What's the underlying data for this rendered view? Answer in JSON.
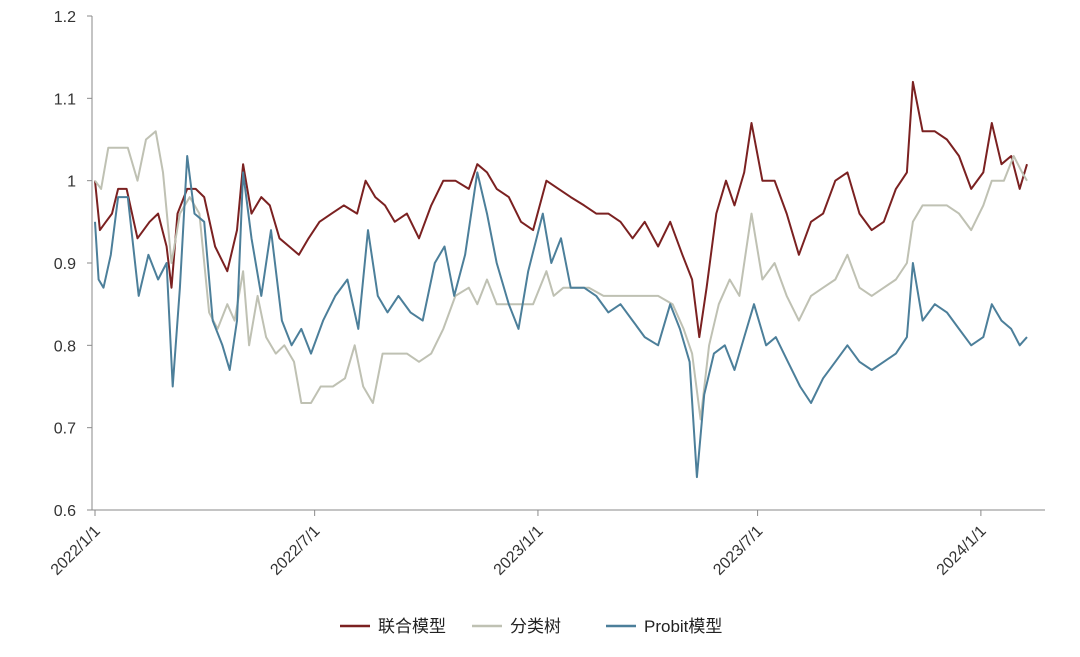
{
  "chart_data": {
    "type": "line",
    "title": "",
    "xlabel": "",
    "ylabel": "",
    "ylim": [
      0.6,
      1.2
    ],
    "y_ticks": [
      "0.6",
      "0.7",
      "0.8",
      "0.9",
      "1",
      "1.1",
      "1.2"
    ],
    "x_ticks": [
      "2022/1/1",
      "2022/7/1",
      "2023/1/1",
      "2023/7/1",
      "2024/1/1"
    ],
    "x_range": [
      "2022-01-01",
      "2024-02-08"
    ],
    "grid": false,
    "legend_position": "bottom",
    "series": [
      {
        "name": "联合模型",
        "color": "#7b2121",
        "points": [
          [
            "2022-01-01",
            1.0
          ],
          [
            "2022-01-05",
            0.94
          ],
          [
            "2022-01-10",
            0.95
          ],
          [
            "2022-01-15",
            0.96
          ],
          [
            "2022-01-20",
            0.99
          ],
          [
            "2022-01-27",
            0.99
          ],
          [
            "2022-02-05",
            0.93
          ],
          [
            "2022-02-15",
            0.95
          ],
          [
            "2022-02-22",
            0.96
          ],
          [
            "2022-03-01",
            0.92
          ],
          [
            "2022-03-05",
            0.87
          ],
          [
            "2022-03-10",
            0.96
          ],
          [
            "2022-03-18",
            0.99
          ],
          [
            "2022-03-25",
            0.99
          ],
          [
            "2022-04-01",
            0.98
          ],
          [
            "2022-04-10",
            0.92
          ],
          [
            "2022-04-20",
            0.89
          ],
          [
            "2022-04-28",
            0.94
          ],
          [
            "2022-05-03",
            1.02
          ],
          [
            "2022-05-10",
            0.96
          ],
          [
            "2022-05-18",
            0.98
          ],
          [
            "2022-05-25",
            0.97
          ],
          [
            "2022-06-02",
            0.93
          ],
          [
            "2022-06-10",
            0.92
          ],
          [
            "2022-06-18",
            0.91
          ],
          [
            "2022-06-26",
            0.93
          ],
          [
            "2022-07-05",
            0.95
          ],
          [
            "2022-07-15",
            0.96
          ],
          [
            "2022-07-25",
            0.97
          ],
          [
            "2022-08-05",
            0.96
          ],
          [
            "2022-08-12",
            1.0
          ],
          [
            "2022-08-20",
            0.98
          ],
          [
            "2022-08-28",
            0.97
          ],
          [
            "2022-09-05",
            0.95
          ],
          [
            "2022-09-15",
            0.96
          ],
          [
            "2022-09-25",
            0.93
          ],
          [
            "2022-10-05",
            0.97
          ],
          [
            "2022-10-15",
            1.0
          ],
          [
            "2022-10-25",
            1.0
          ],
          [
            "2022-11-05",
            0.99
          ],
          [
            "2022-11-12",
            1.02
          ],
          [
            "2022-11-20",
            1.01
          ],
          [
            "2022-11-28",
            0.99
          ],
          [
            "2022-12-08",
            0.98
          ],
          [
            "2022-12-18",
            0.95
          ],
          [
            "2022-12-28",
            0.94
          ],
          [
            "2023-01-08",
            1.0
          ],
          [
            "2023-01-18",
            0.99
          ],
          [
            "2023-01-28",
            0.98
          ],
          [
            "2023-02-08",
            0.97
          ],
          [
            "2023-02-18",
            0.96
          ],
          [
            "2023-02-28",
            0.96
          ],
          [
            "2023-03-10",
            0.95
          ],
          [
            "2023-03-20",
            0.93
          ],
          [
            "2023-03-30",
            0.95
          ],
          [
            "2023-04-10",
            0.92
          ],
          [
            "2023-04-20",
            0.95
          ],
          [
            "2023-04-30",
            0.91
          ],
          [
            "2023-05-08",
            0.88
          ],
          [
            "2023-05-14",
            0.81
          ],
          [
            "2023-05-20",
            0.87
          ],
          [
            "2023-05-28",
            0.96
          ],
          [
            "2023-06-05",
            1.0
          ],
          [
            "2023-06-12",
            0.97
          ],
          [
            "2023-06-20",
            1.01
          ],
          [
            "2023-06-26",
            1.07
          ],
          [
            "2023-07-05",
            1.0
          ],
          [
            "2023-07-15",
            1.0
          ],
          [
            "2023-07-25",
            0.96
          ],
          [
            "2023-08-04",
            0.91
          ],
          [
            "2023-08-14",
            0.95
          ],
          [
            "2023-08-24",
            0.96
          ],
          [
            "2023-09-03",
            1.0
          ],
          [
            "2023-09-13",
            1.01
          ],
          [
            "2023-09-23",
            0.96
          ],
          [
            "2023-10-03",
            0.94
          ],
          [
            "2023-10-13",
            0.95
          ],
          [
            "2023-10-23",
            0.99
          ],
          [
            "2023-11-01",
            1.01
          ],
          [
            "2023-11-06",
            1.12
          ],
          [
            "2023-11-14",
            1.06
          ],
          [
            "2023-11-24",
            1.06
          ],
          [
            "2023-12-04",
            1.05
          ],
          [
            "2023-12-14",
            1.03
          ],
          [
            "2023-12-24",
            0.99
          ],
          [
            "2024-01-03",
            1.01
          ],
          [
            "2024-01-10",
            1.07
          ],
          [
            "2024-01-18",
            1.02
          ],
          [
            "2024-01-26",
            1.03
          ],
          [
            "2024-02-02",
            0.99
          ],
          [
            "2024-02-08",
            1.02
          ]
        ]
      },
      {
        "name": "分类树",
        "color": "#bfc1b3",
        "points": [
          [
            "2022-01-01",
            1.0
          ],
          [
            "2022-01-06",
            0.99
          ],
          [
            "2022-01-12",
            1.04
          ],
          [
            "2022-01-20",
            1.04
          ],
          [
            "2022-01-28",
            1.04
          ],
          [
            "2022-02-05",
            1.0
          ],
          [
            "2022-02-12",
            1.05
          ],
          [
            "2022-02-20",
            1.06
          ],
          [
            "2022-02-26",
            1.01
          ],
          [
            "2022-03-05",
            0.9
          ],
          [
            "2022-03-12",
            0.96
          ],
          [
            "2022-03-20",
            0.98
          ],
          [
            "2022-03-28",
            0.96
          ],
          [
            "2022-04-05",
            0.84
          ],
          [
            "2022-04-12",
            0.82
          ],
          [
            "2022-04-20",
            0.85
          ],
          [
            "2022-04-26",
            0.83
          ],
          [
            "2022-05-03",
            0.89
          ],
          [
            "2022-05-08",
            0.8
          ],
          [
            "2022-05-15",
            0.86
          ],
          [
            "2022-05-22",
            0.81
          ],
          [
            "2022-05-30",
            0.79
          ],
          [
            "2022-06-06",
            0.8
          ],
          [
            "2022-06-14",
            0.78
          ],
          [
            "2022-06-20",
            0.73
          ],
          [
            "2022-06-28",
            0.73
          ],
          [
            "2022-07-06",
            0.75
          ],
          [
            "2022-07-16",
            0.75
          ],
          [
            "2022-07-26",
            0.76
          ],
          [
            "2022-08-03",
            0.8
          ],
          [
            "2022-08-10",
            0.75
          ],
          [
            "2022-08-18",
            0.73
          ],
          [
            "2022-08-26",
            0.79
          ],
          [
            "2022-09-05",
            0.79
          ],
          [
            "2022-09-15",
            0.79
          ],
          [
            "2022-09-25",
            0.78
          ],
          [
            "2022-10-05",
            0.79
          ],
          [
            "2022-10-15",
            0.82
          ],
          [
            "2022-10-25",
            0.86
          ],
          [
            "2022-11-05",
            0.87
          ],
          [
            "2022-11-12",
            0.85
          ],
          [
            "2022-11-20",
            0.88
          ],
          [
            "2022-11-28",
            0.85
          ],
          [
            "2022-12-08",
            0.85
          ],
          [
            "2022-12-18",
            0.85
          ],
          [
            "2022-12-28",
            0.85
          ],
          [
            "2023-01-08",
            0.89
          ],
          [
            "2023-01-14",
            0.86
          ],
          [
            "2023-01-22",
            0.87
          ],
          [
            "2023-02-01",
            0.87
          ],
          [
            "2023-02-12",
            0.87
          ],
          [
            "2023-02-24",
            0.86
          ],
          [
            "2023-03-06",
            0.86
          ],
          [
            "2023-03-18",
            0.86
          ],
          [
            "2023-03-30",
            0.86
          ],
          [
            "2023-04-10",
            0.86
          ],
          [
            "2023-04-22",
            0.85
          ],
          [
            "2023-05-01",
            0.82
          ],
          [
            "2023-05-08",
            0.79
          ],
          [
            "2023-05-15",
            0.71
          ],
          [
            "2023-05-22",
            0.8
          ],
          [
            "2023-05-30",
            0.85
          ],
          [
            "2023-06-08",
            0.88
          ],
          [
            "2023-06-16",
            0.86
          ],
          [
            "2023-06-26",
            0.96
          ],
          [
            "2023-07-05",
            0.88
          ],
          [
            "2023-07-15",
            0.9
          ],
          [
            "2023-07-25",
            0.86
          ],
          [
            "2023-08-04",
            0.83
          ],
          [
            "2023-08-14",
            0.86
          ],
          [
            "2023-08-24",
            0.87
          ],
          [
            "2023-09-03",
            0.88
          ],
          [
            "2023-09-13",
            0.91
          ],
          [
            "2023-09-23",
            0.87
          ],
          [
            "2023-10-03",
            0.86
          ],
          [
            "2023-10-13",
            0.87
          ],
          [
            "2023-10-23",
            0.88
          ],
          [
            "2023-11-01",
            0.9
          ],
          [
            "2023-11-06",
            0.95
          ],
          [
            "2023-11-14",
            0.97
          ],
          [
            "2023-11-24",
            0.97
          ],
          [
            "2023-12-04",
            0.97
          ],
          [
            "2023-12-14",
            0.96
          ],
          [
            "2023-12-24",
            0.94
          ],
          [
            "2024-01-03",
            0.97
          ],
          [
            "2024-01-10",
            1.0
          ],
          [
            "2024-01-20",
            1.0
          ],
          [
            "2024-01-28",
            1.03
          ],
          [
            "2024-02-04",
            1.01
          ],
          [
            "2024-02-08",
            1.0
          ]
        ]
      },
      {
        "name": "Probit模型",
        "color": "#4c7f9a",
        "points": [
          [
            "2022-01-01",
            0.95
          ],
          [
            "2022-01-04",
            0.88
          ],
          [
            "2022-01-08",
            0.87
          ],
          [
            "2022-01-14",
            0.91
          ],
          [
            "2022-01-20",
            0.98
          ],
          [
            "2022-01-28",
            0.98
          ],
          [
            "2022-02-06",
            0.86
          ],
          [
            "2022-02-14",
            0.91
          ],
          [
            "2022-02-22",
            0.88
          ],
          [
            "2022-03-01",
            0.9
          ],
          [
            "2022-03-06",
            0.75
          ],
          [
            "2022-03-12",
            0.87
          ],
          [
            "2022-03-18",
            1.03
          ],
          [
            "2022-03-24",
            0.96
          ],
          [
            "2022-04-01",
            0.95
          ],
          [
            "2022-04-08",
            0.83
          ],
          [
            "2022-04-16",
            0.8
          ],
          [
            "2022-04-22",
            0.77
          ],
          [
            "2022-04-28",
            0.83
          ],
          [
            "2022-05-03",
            1.01
          ],
          [
            "2022-05-10",
            0.93
          ],
          [
            "2022-05-18",
            0.86
          ],
          [
            "2022-05-26",
            0.94
          ],
          [
            "2022-06-04",
            0.83
          ],
          [
            "2022-06-12",
            0.8
          ],
          [
            "2022-06-20",
            0.82
          ],
          [
            "2022-06-28",
            0.79
          ],
          [
            "2022-07-08",
            0.83
          ],
          [
            "2022-07-18",
            0.86
          ],
          [
            "2022-07-28",
            0.88
          ],
          [
            "2022-08-06",
            0.82
          ],
          [
            "2022-08-14",
            0.94
          ],
          [
            "2022-08-22",
            0.86
          ],
          [
            "2022-08-30",
            0.84
          ],
          [
            "2022-09-08",
            0.86
          ],
          [
            "2022-09-18",
            0.84
          ],
          [
            "2022-09-28",
            0.83
          ],
          [
            "2022-10-08",
            0.9
          ],
          [
            "2022-10-16",
            0.92
          ],
          [
            "2022-10-24",
            0.86
          ],
          [
            "2022-11-02",
            0.91
          ],
          [
            "2022-11-12",
            1.01
          ],
          [
            "2022-11-20",
            0.96
          ],
          [
            "2022-11-28",
            0.9
          ],
          [
            "2022-12-08",
            0.85
          ],
          [
            "2022-12-16",
            0.82
          ],
          [
            "2022-12-24",
            0.89
          ],
          [
            "2023-01-05",
            0.96
          ],
          [
            "2023-01-12",
            0.9
          ],
          [
            "2023-01-20",
            0.93
          ],
          [
            "2023-01-28",
            0.87
          ],
          [
            "2023-02-08",
            0.87
          ],
          [
            "2023-02-18",
            0.86
          ],
          [
            "2023-02-28",
            0.84
          ],
          [
            "2023-03-10",
            0.85
          ],
          [
            "2023-03-20",
            0.83
          ],
          [
            "2023-03-30",
            0.81
          ],
          [
            "2023-04-10",
            0.8
          ],
          [
            "2023-04-20",
            0.85
          ],
          [
            "2023-04-28",
            0.82
          ],
          [
            "2023-05-06",
            0.78
          ],
          [
            "2023-05-12",
            0.64
          ],
          [
            "2023-05-18",
            0.74
          ],
          [
            "2023-05-26",
            0.79
          ],
          [
            "2023-06-04",
            0.8
          ],
          [
            "2023-06-12",
            0.77
          ],
          [
            "2023-06-20",
            0.81
          ],
          [
            "2023-06-28",
            0.85
          ],
          [
            "2023-07-08",
            0.8
          ],
          [
            "2023-07-16",
            0.81
          ],
          [
            "2023-07-26",
            0.78
          ],
          [
            "2023-08-05",
            0.75
          ],
          [
            "2023-08-14",
            0.73
          ],
          [
            "2023-08-24",
            0.76
          ],
          [
            "2023-09-03",
            0.78
          ],
          [
            "2023-09-13",
            0.8
          ],
          [
            "2023-09-23",
            0.78
          ],
          [
            "2023-10-03",
            0.77
          ],
          [
            "2023-10-13",
            0.78
          ],
          [
            "2023-10-23",
            0.79
          ],
          [
            "2023-11-01",
            0.81
          ],
          [
            "2023-11-06",
            0.9
          ],
          [
            "2023-11-14",
            0.83
          ],
          [
            "2023-11-24",
            0.85
          ],
          [
            "2023-12-04",
            0.84
          ],
          [
            "2023-12-14",
            0.82
          ],
          [
            "2023-12-24",
            0.8
          ],
          [
            "2024-01-03",
            0.81
          ],
          [
            "2024-01-10",
            0.85
          ],
          [
            "2024-01-18",
            0.83
          ],
          [
            "2024-01-26",
            0.82
          ],
          [
            "2024-02-02",
            0.8
          ],
          [
            "2024-02-08",
            0.81
          ]
        ]
      }
    ]
  }
}
